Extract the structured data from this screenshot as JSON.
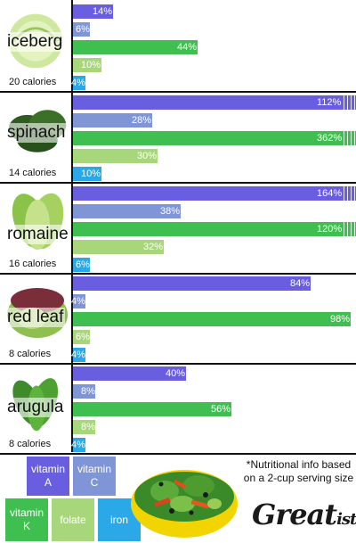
{
  "colors": {
    "vitamin_a": "#6a5ee0",
    "vitamin_c": "#7f95d6",
    "vitamin_k": "#3fbf4f",
    "folate": "#a8d67a",
    "iron": "#2aa8e8"
  },
  "chart_data": {
    "type": "bar",
    "orientation": "horizontal",
    "groups": [
      {
        "name": "iceberg",
        "calories": "20 calories",
        "labels": [
          "14%",
          "6%",
          "44%",
          "10%",
          "4%"
        ],
        "values": [
          14,
          6,
          44,
          10,
          4
        ]
      },
      {
        "name": "spinach",
        "calories": "14 calories",
        "labels": [
          "112%",
          "28%",
          "362%",
          "30%",
          "10%"
        ],
        "values": [
          112,
          28,
          362,
          30,
          10
        ]
      },
      {
        "name": "romaine",
        "calories": "16 calories",
        "labels": [
          "164%",
          "38%",
          "120%",
          "32%",
          "6%"
        ],
        "values": [
          164,
          38,
          120,
          32,
          6
        ]
      },
      {
        "name": "red leaf",
        "calories": "8 calories",
        "labels": [
          "84%",
          "4%",
          "98%",
          "6%",
          "4%"
        ],
        "values": [
          84,
          4,
          98,
          6,
          4
        ]
      },
      {
        "name": "arugula",
        "calories": "8 calories",
        "labels": [
          "40%",
          "8%",
          "56%",
          "8%",
          "4%"
        ],
        "values": [
          40,
          8,
          56,
          8,
          4
        ]
      }
    ],
    "series": [
      "vitamin_a",
      "vitamin_c",
      "vitamin_k",
      "folate",
      "iron"
    ],
    "x_capped_at": 100,
    "over_cap_groups_are_striped": true
  },
  "legend": {
    "vitamin_a": "vitamin A",
    "vitamin_c": "vitamin C",
    "vitamin_k": "vitamin K",
    "folate": "folate",
    "iron": "iron"
  },
  "note": "*Nutritional info based on a 2-cup serving size",
  "logo": {
    "main": "Great",
    "suffix": "ist"
  }
}
